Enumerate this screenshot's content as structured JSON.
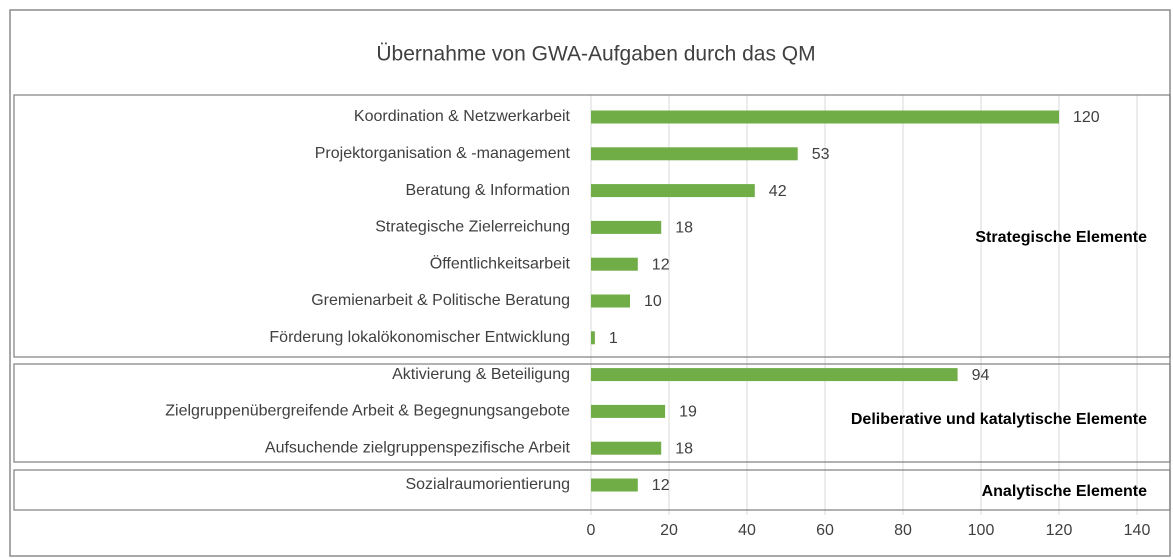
{
  "chart_data": {
    "type": "bar",
    "orientation": "horizontal",
    "title": "Übernahme von GWA-Aufgaben durch das QM",
    "categories": [
      "Koordination & Netzwerkarbeit",
      "Projektorganisation & -management",
      "Beratung & Information",
      "Strategische Zielerreichung",
      "Öffentlichkeitsarbeit",
      "Gremienarbeit & Politische Beratung",
      "Förderung lokalökonomischer Entwicklung",
      "Aktivierung & Beteiligung",
      "Zielgruppenübergreifende Arbeit & Begegnungsangebote",
      "Aufsuchende zielgruppenspezifische Arbeit",
      "Sozialraumorientierung"
    ],
    "values": [
      120,
      53,
      42,
      18,
      12,
      10,
      1,
      94,
      19,
      18,
      12
    ],
    "color": "#70ad47",
    "xlim": [
      0,
      140
    ],
    "xticks": [
      0,
      20,
      40,
      60,
      80,
      100,
      120,
      140
    ],
    "grid": true,
    "annotations": [
      "Strategische Elemente",
      "Deliberative und katalytische Elemente",
      "Analytische Elemente"
    ]
  }
}
